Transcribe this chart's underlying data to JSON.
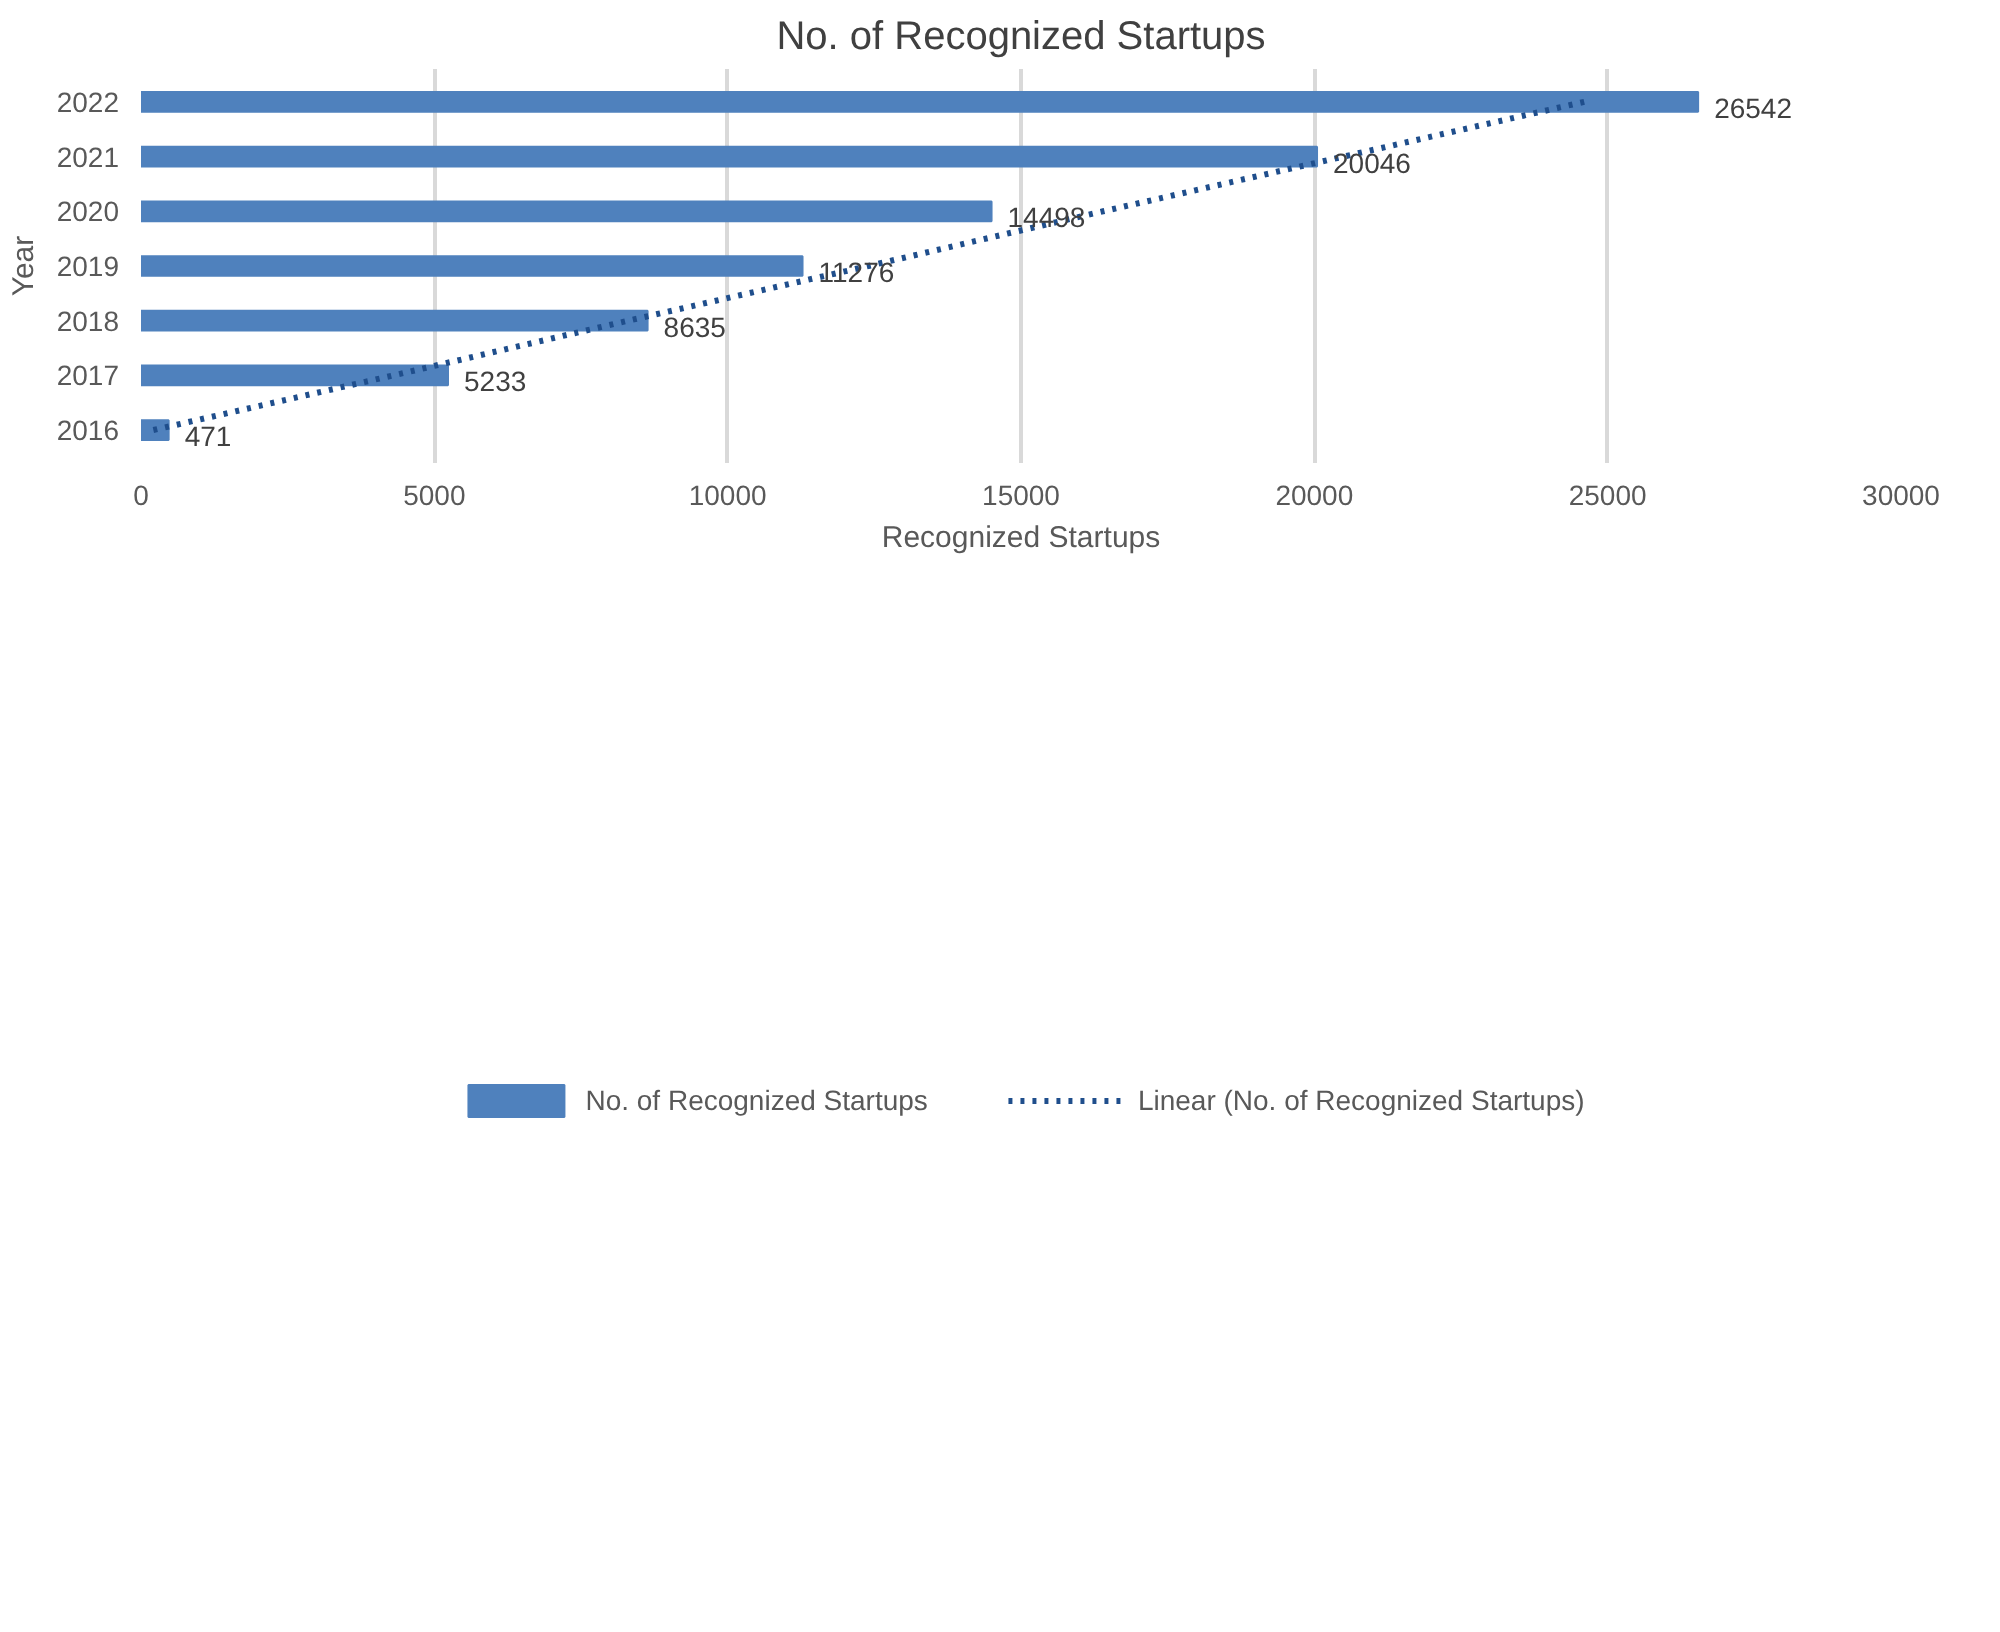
{
  "chart_data": {
    "type": "bar",
    "orientation": "horizontal",
    "title": "No. of Recognized Startups",
    "xlabel": "Recognized Startups",
    "ylabel": "Year",
    "categories": [
      "2022",
      "2021",
      "2020",
      "2019",
      "2018",
      "2017",
      "2016"
    ],
    "series": [
      {
        "name": "No. of Recognized Startups",
        "color": "#4f81bd",
        "values": [
          26542,
          20046,
          14498,
          11276,
          8635,
          5233,
          471
        ],
        "value_labels": [
          "26542",
          "20046",
          "14498",
          "11276",
          "8635",
          "5233",
          "471"
        ]
      },
      {
        "name": "Linear (No. of Recognized Startups)",
        "type": "line",
        "line_style": "dotted",
        "color": "#1f4e8c",
        "values": [
          24600,
          20500,
          16400,
          12400,
          8300,
          4300,
          200
        ]
      }
    ],
    "xlim": [
      0,
      30000
    ],
    "xticks": [
      0,
      5000,
      10000,
      15000,
      20000,
      25000,
      30000
    ],
    "grid": "x",
    "legend": "bottom"
  }
}
